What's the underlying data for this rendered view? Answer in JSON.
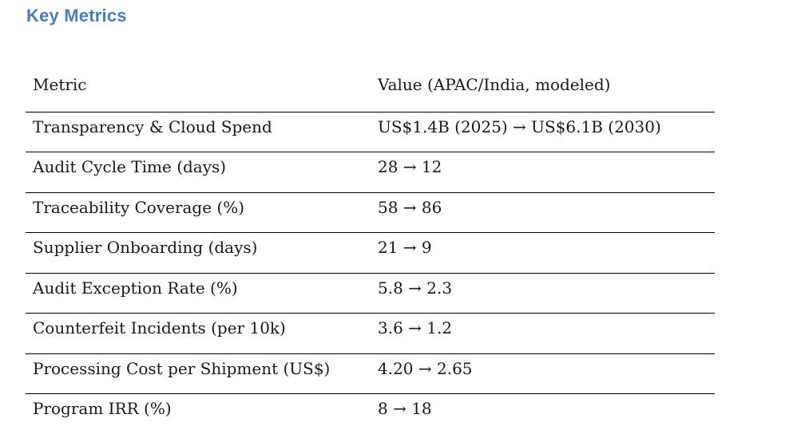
{
  "page": {
    "title": "Key Metrics",
    "title_color": "#4a7ebb",
    "background_color": "#ffffff",
    "rule_color": "#000000"
  },
  "table": {
    "columns": [
      {
        "label": "Metric"
      },
      {
        "label": "Value (APAC/India, modeled)"
      }
    ],
    "rows": [
      {
        "metric": "Transparency & Cloud Spend",
        "value": "US$1.4B (2025) → US$6.1B (2030)"
      },
      {
        "metric": "Audit Cycle Time (days)",
        "value": "28 → 12"
      },
      {
        "metric": "Traceability Coverage (%)",
        "value": "58 → 86"
      },
      {
        "metric": "Supplier Onboarding (days)",
        "value": "21 → 9"
      },
      {
        "metric": "Audit Exception Rate (%)",
        "value": "5.8 → 2.3"
      },
      {
        "metric": "Counterfeit Incidents (per 10k)",
        "value": "3.6 → 1.2"
      },
      {
        "metric": "Processing Cost per Shipment (US$)",
        "value": "4.20 → 2.65"
      },
      {
        "metric": "Program IRR (%)",
        "value": "8 → 18"
      }
    ]
  }
}
